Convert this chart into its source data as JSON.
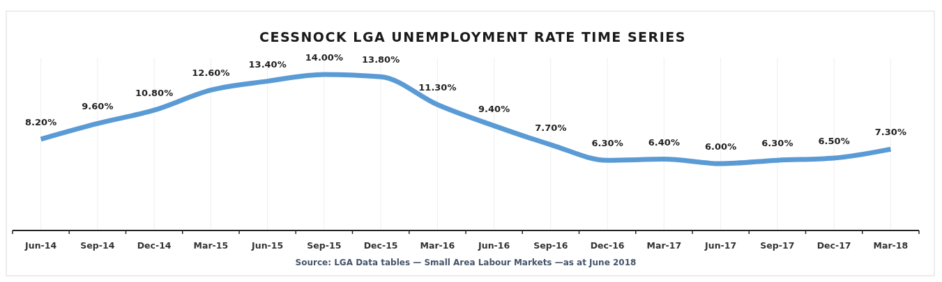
{
  "chart_data": {
    "type": "line",
    "title": "CESSNOCK LGA UNEMPLOYMENT RATE TIME SERIES",
    "categories": [
      "Jun-14",
      "Sep-14",
      "Dec-14",
      "Mar-15",
      "Jun-15",
      "Sep-15",
      "Dec-15",
      "Mar-16",
      "Jun-16",
      "Sep-16",
      "Dec-16",
      "Mar-17",
      "Jun-17",
      "Sep-17",
      "Dec-17",
      "Mar-18"
    ],
    "series": [
      {
        "color": "#5b9bd5",
        "values": [
          8.2,
          9.6,
          10.8,
          12.6,
          13.4,
          14.0,
          13.8,
          11.3,
          9.4,
          7.7,
          6.3,
          6.4,
          6.0,
          6.3,
          6.5,
          7.3
        ],
        "value_labels": [
          "8.20%",
          "9.60%",
          "10.80%",
          "12.60%",
          "13.40%",
          "14.00%",
          "13.80%",
          "11.30%",
          "9.40%",
          "7.70%",
          "6.30%",
          "6.40%",
          "6.00%",
          "6.30%",
          "6.50%",
          "7.30%"
        ]
      }
    ],
    "ylim": [
      0,
      15.5
    ],
    "tick_labels": "x",
    "grid": "x",
    "marker": "none",
    "line_style": "solid",
    "annotations": [
      "Source: LGA Data tables — Small Area Labour Markets —as at June 2018"
    ]
  }
}
